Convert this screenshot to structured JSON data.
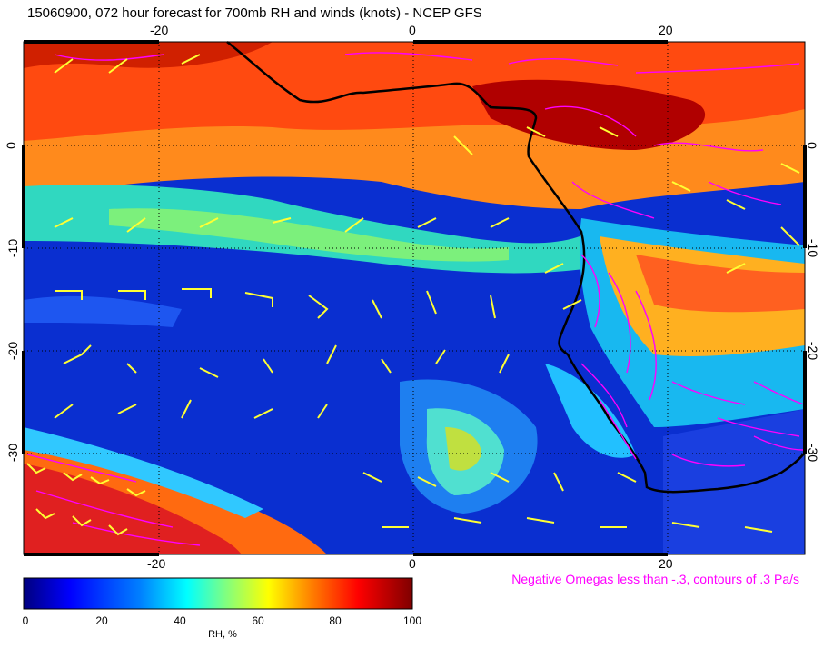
{
  "title": "15060900, 072 hour forecast for 700mb RH and winds (knots) - NCEP GFS",
  "axes": {
    "top": [
      "-20",
      "0",
      "20"
    ],
    "bottom": [
      "-20",
      "0",
      "20"
    ],
    "left": [
      "0",
      "-10",
      "-20",
      "-30"
    ],
    "right": [
      "0",
      "-10",
      "-20",
      "-30"
    ]
  },
  "omega_note": "Negative Omegas less than -.3, contours of .3 Pa/s",
  "colorbar": {
    "ticks": [
      "0",
      "20",
      "40",
      "60",
      "80",
      "100"
    ],
    "units": "RH, %",
    "colors": [
      "#00007f",
      "#0000ff",
      "#0080ff",
      "#00ffff",
      "#80ff80",
      "#ffff00",
      "#ff8000",
      "#ff0000",
      "#7f0000"
    ]
  },
  "colors": {
    "coast": "#000000",
    "barbs": "#ffff33",
    "omega": "#ff00ff",
    "grid": "#000000"
  }
}
